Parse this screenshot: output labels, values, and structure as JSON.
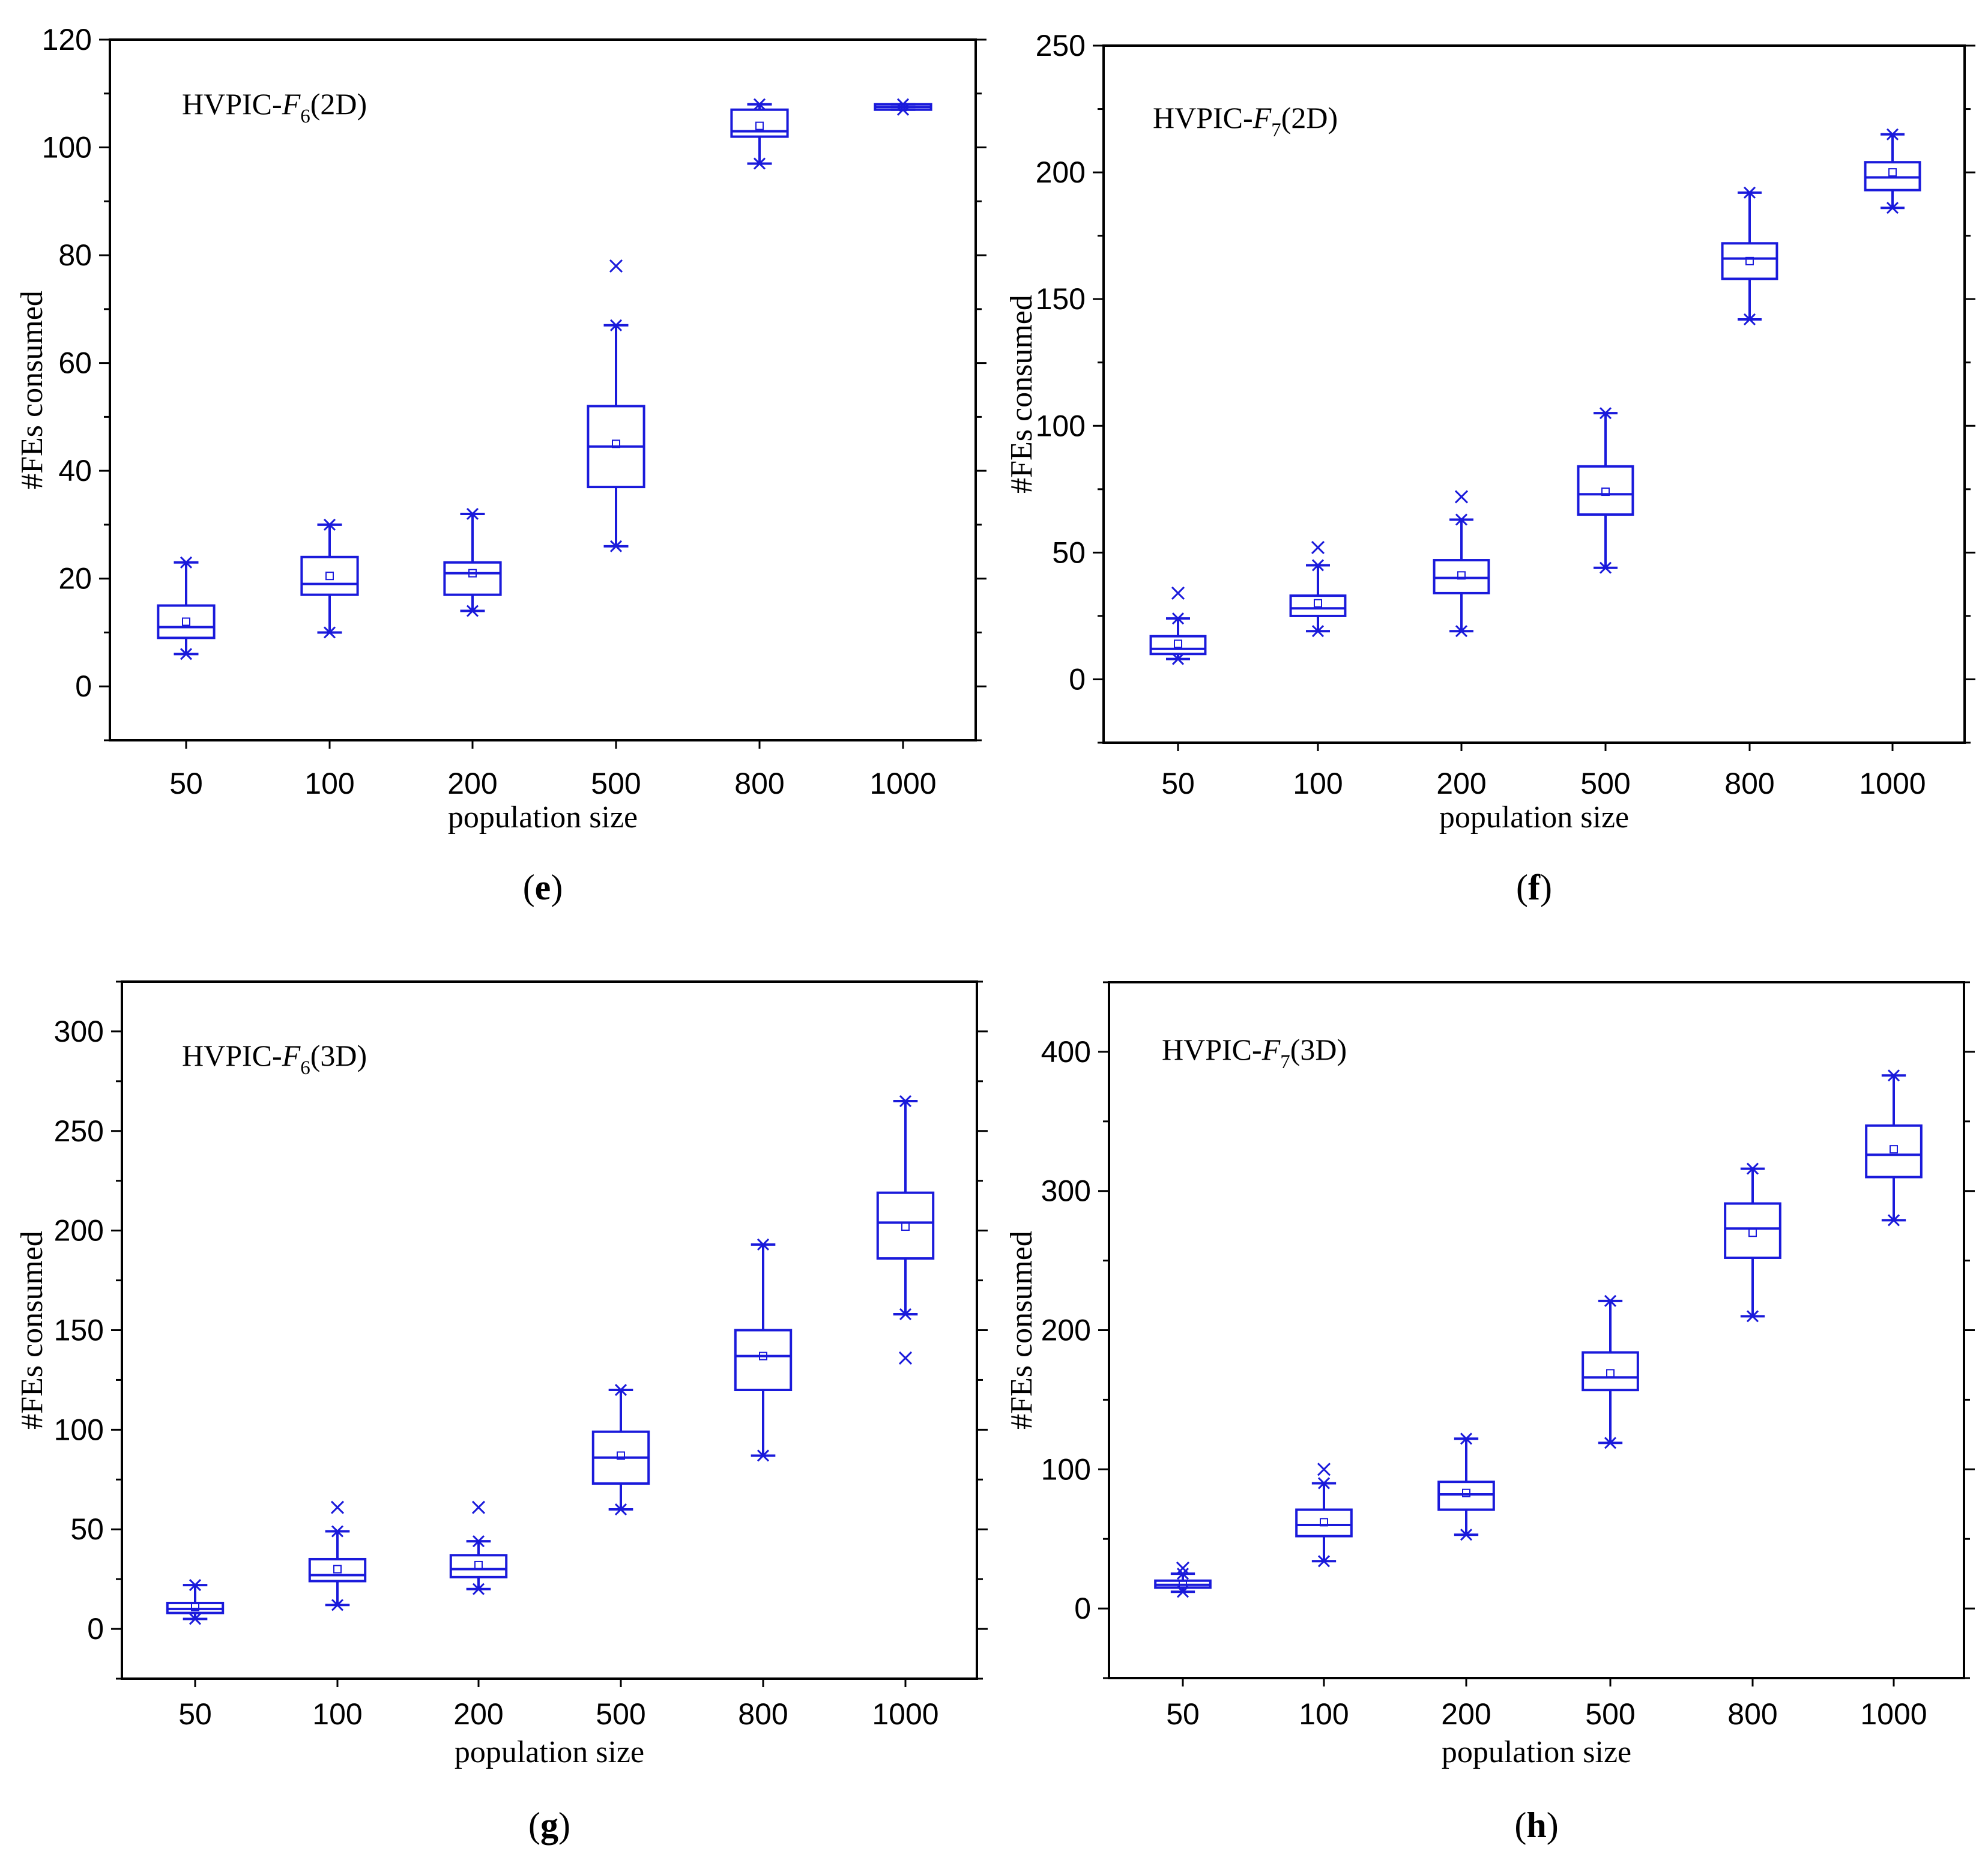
{
  "figure": {
    "box_color": "#1a1adb",
    "axis_color": "#000000"
  },
  "chart_data": [
    {
      "type": "box",
      "panel_label": "e",
      "title": {
        "prefix": "HVPIC-",
        "func": "F",
        "sub": "6",
        "suffix": "(2D)"
      },
      "xlabel": "population size",
      "ylabel": "#FEs consumed",
      "categories": [
        "50",
        "100",
        "200",
        "500",
        "800",
        "1000"
      ],
      "ylim": [
        -10,
        120
      ],
      "yticks": [
        "0",
        "20",
        "40",
        "60",
        "80",
        "100",
        "120"
      ],
      "ytick_values": [
        0,
        20,
        40,
        60,
        80,
        100,
        120
      ],
      "boxes": [
        {
          "q1": 9,
          "median": 11,
          "q3": 15,
          "whisker_low": 6,
          "whisker_high": 23,
          "mean": 12,
          "outliers": []
        },
        {
          "q1": 17,
          "median": 19,
          "q3": 24,
          "whisker_low": 10,
          "whisker_high": 30,
          "mean": 20.5,
          "outliers": []
        },
        {
          "q1": 17,
          "median": 21,
          "q3": 23,
          "whisker_low": 14,
          "whisker_high": 32,
          "mean": 21,
          "outliers": []
        },
        {
          "q1": 37,
          "median": 44.5,
          "q3": 52,
          "whisker_low": 26,
          "whisker_high": 67,
          "mean": 45,
          "outliers": [
            78
          ]
        },
        {
          "q1": 102,
          "median": 103,
          "q3": 107,
          "whisker_low": 97,
          "whisker_high": 108,
          "mean": 104,
          "outliers": []
        },
        {
          "q1": 107,
          "median": 107.5,
          "q3": 108,
          "whisker_low": 107,
          "whisker_high": 108,
          "mean": 107.5,
          "outliers": []
        }
      ]
    },
    {
      "type": "box",
      "panel_label": "f",
      "title": {
        "prefix": "HVPIC-",
        "func": "F",
        "sub": "7",
        "suffix": "(2D)"
      },
      "xlabel": "population size",
      "ylabel": "#FEs consumed",
      "categories": [
        "50",
        "100",
        "200",
        "500",
        "800",
        "1000"
      ],
      "ylim": [
        -25,
        250
      ],
      "yticks": [
        "0",
        "50",
        "100",
        "150",
        "200",
        "250"
      ],
      "ytick_values": [
        0,
        50,
        100,
        150,
        200,
        250
      ],
      "boxes": [
        {
          "q1": 10,
          "median": 12,
          "q3": 17,
          "whisker_low": 8,
          "whisker_high": 24,
          "mean": 14,
          "outliers": [
            34
          ]
        },
        {
          "q1": 25,
          "median": 28,
          "q3": 33,
          "whisker_low": 19,
          "whisker_high": 45,
          "mean": 30,
          "outliers": [
            52
          ]
        },
        {
          "q1": 34,
          "median": 40,
          "q3": 47,
          "whisker_low": 19,
          "whisker_high": 63,
          "mean": 41,
          "outliers": [
            72
          ]
        },
        {
          "q1": 65,
          "median": 73,
          "q3": 84,
          "whisker_low": 44,
          "whisker_high": 105,
          "mean": 74,
          "outliers": []
        },
        {
          "q1": 158,
          "median": 166,
          "q3": 172,
          "whisker_low": 142,
          "whisker_high": 192,
          "mean": 165,
          "outliers": []
        },
        {
          "q1": 193,
          "median": 198,
          "q3": 204,
          "whisker_low": 186,
          "whisker_high": 215,
          "mean": 200,
          "outliers": []
        }
      ]
    },
    {
      "type": "box",
      "panel_label": "g",
      "title": {
        "prefix": "HVPIC-",
        "func": "F",
        "sub": "6",
        "suffix": "(3D)"
      },
      "xlabel": "population size",
      "ylabel": "#FEs consumed",
      "categories": [
        "50",
        "100",
        "200",
        "500",
        "800",
        "1000"
      ],
      "ylim": [
        -25,
        325
      ],
      "yticks": [
        "0",
        "50",
        "100",
        "150",
        "200",
        "250",
        "300"
      ],
      "ytick_values": [
        0,
        50,
        100,
        150,
        200,
        250,
        300
      ],
      "boxes": [
        {
          "q1": 8,
          "median": 10,
          "q3": 13,
          "whisker_low": 5,
          "whisker_high": 22,
          "mean": 11,
          "outliers": []
        },
        {
          "q1": 24,
          "median": 27,
          "q3": 35,
          "whisker_low": 12,
          "whisker_high": 49,
          "mean": 30,
          "outliers": [
            61
          ]
        },
        {
          "q1": 26,
          "median": 30,
          "q3": 37,
          "whisker_low": 20,
          "whisker_high": 44,
          "mean": 32,
          "outliers": [
            61
          ]
        },
        {
          "q1": 73,
          "median": 86,
          "q3": 99,
          "whisker_low": 60,
          "whisker_high": 120,
          "mean": 87,
          "outliers": []
        },
        {
          "q1": 120,
          "median": 137,
          "q3": 150,
          "whisker_low": 87,
          "whisker_high": 193,
          "mean": 137,
          "outliers": []
        },
        {
          "q1": 186,
          "median": 204,
          "q3": 219,
          "whisker_low": 158,
          "whisker_high": 265,
          "mean": 202,
          "outliers": [
            136
          ]
        }
      ]
    },
    {
      "type": "box",
      "panel_label": "h",
      "title": {
        "prefix": "HVPIC-",
        "func": "F",
        "sub": "7",
        "suffix": "(3D)"
      },
      "xlabel": "population size",
      "ylabel": "#FEs consumed",
      "categories": [
        "50",
        "100",
        "200",
        "500",
        "800",
        "1000"
      ],
      "ylim": [
        -50,
        450
      ],
      "yticks": [
        "0",
        "100",
        "200",
        "300",
        "400"
      ],
      "ytick_values": [
        0,
        100,
        200,
        300,
        400
      ],
      "boxes": [
        {
          "q1": 15,
          "median": 17,
          "q3": 20,
          "whisker_low": 12,
          "whisker_high": 25,
          "mean": 17,
          "outliers": [
            29
          ]
        },
        {
          "q1": 52,
          "median": 60,
          "q3": 71,
          "whisker_low": 34,
          "whisker_high": 90,
          "mean": 62,
          "outliers": [
            100
          ]
        },
        {
          "q1": 71,
          "median": 82,
          "q3": 91,
          "whisker_low": 53,
          "whisker_high": 122,
          "mean": 83,
          "outliers": []
        },
        {
          "q1": 157,
          "median": 166,
          "q3": 184,
          "whisker_low": 119,
          "whisker_high": 221,
          "mean": 169,
          "outliers": []
        },
        {
          "q1": 252,
          "median": 273,
          "q3": 291,
          "whisker_low": 210,
          "whisker_high": 316,
          "mean": 270,
          "outliers": []
        },
        {
          "q1": 310,
          "median": 326,
          "q3": 347,
          "whisker_low": 279,
          "whisker_high": 383,
          "mean": 330,
          "outliers": []
        }
      ]
    }
  ]
}
